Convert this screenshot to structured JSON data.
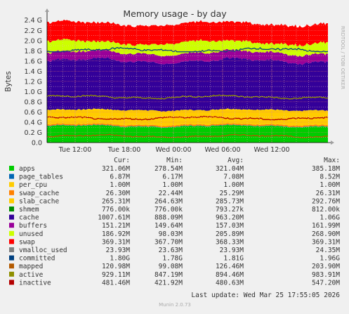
{
  "chart_data": {
    "type": "area",
    "title": "Memory usage - by day",
    "ylabel": "Bytes",
    "side_label": "RRDTOOL / TOBI OETIKER",
    "footer": "Munin 2.0.73",
    "last_update": "Last update: Wed Mar 25 17:55:05 2026",
    "ylim": [
      0,
      2.3
    ],
    "y_ticks": [
      "0.0",
      "0.2 G",
      "0.4 G",
      "0.6 G",
      "0.8 G",
      "1.0 G",
      "1.2 G",
      "1.4 G",
      "1.6 G",
      "1.8 G",
      "2.0 G",
      "2.2 G",
      "2.4 G"
    ],
    "x_ticks": [
      "Tue 12:00",
      "Tue 18:00",
      "Wed 00:00",
      "Wed 06:00",
      "Wed 12:00"
    ],
    "grid": true,
    "legend_headers": [
      "Cur:",
      "Min:",
      "Avg:",
      "Max:"
    ],
    "legend": [
      {
        "name": "apps",
        "color": "#00cc00",
        "cur": "321.06M",
        "min": "278.54M",
        "avg": "321.04M",
        "max": "385.18M"
      },
      {
        "name": "page_tables",
        "color": "#0066b3",
        "cur": "6.87M",
        "min": "6.17M",
        "avg": "7.08M",
        "max": "8.52M"
      },
      {
        "name": "per_cpu",
        "color": "#ffcc00",
        "cur": "1.00M",
        "min": "1.00M",
        "avg": "1.00M",
        "max": "1.00M"
      },
      {
        "name": "swap_cache",
        "color": "#ff8000",
        "cur": "26.30M",
        "min": "22.44M",
        "avg": "25.29M",
        "max": "26.31M"
      },
      {
        "name": "slab_cache",
        "color": "#ffcc00",
        "cur": "265.31M",
        "min": "264.63M",
        "avg": "285.73M",
        "max": "292.76M"
      },
      {
        "name": "shmem",
        "color": "#008f00",
        "cur": "776.00k",
        "min": "776.00k",
        "avg": "793.27k",
        "max": "812.00k"
      },
      {
        "name": "cache",
        "color": "#330099",
        "cur": "1007.61M",
        "min": "888.09M",
        "avg": "963.20M",
        "max": "1.06G"
      },
      {
        "name": "buffers",
        "color": "#990099",
        "cur": "151.21M",
        "min": "149.64M",
        "avg": "157.03M",
        "max": "161.99M"
      },
      {
        "name": "unused",
        "color": "#ccff00",
        "cur": "186.92M",
        "min": "98.03M",
        "avg": "205.89M",
        "max": "268.90M"
      },
      {
        "name": "swap",
        "color": "#ff0000",
        "cur": "369.31M",
        "min": "367.70M",
        "avg": "368.33M",
        "max": "369.31M"
      },
      {
        "name": "vmalloc_used",
        "color": "#808080",
        "cur": "23.93M",
        "min": "23.63M",
        "avg": "23.93M",
        "max": "24.35M"
      },
      {
        "name": "committed",
        "color": "#004080",
        "cur": "1.80G",
        "min": "1.78G",
        "avg": "1.81G",
        "max": "1.96G"
      },
      {
        "name": "mapped",
        "color": "#b35a00",
        "cur": "120.98M",
        "min": "99.08M",
        "avg": "126.46M",
        "max": "203.90M"
      },
      {
        "name": "active",
        "color": "#8f8f00",
        "cur": "929.11M",
        "min": "847.19M",
        "avg": "894.46M",
        "max": "983.91M"
      },
      {
        "name": "inactive",
        "color": "#b30000",
        "cur": "481.46M",
        "min": "421.92M",
        "avg": "480.63M",
        "max": "547.20M"
      }
    ],
    "stack_order": [
      "apps",
      "page_tables",
      "per_cpu",
      "swap_cache",
      "slab_cache",
      "shmem",
      "cache",
      "buffers",
      "unused",
      "swap"
    ],
    "lines_order": [
      "committed",
      "mapped",
      "active",
      "inactive"
    ]
  }
}
